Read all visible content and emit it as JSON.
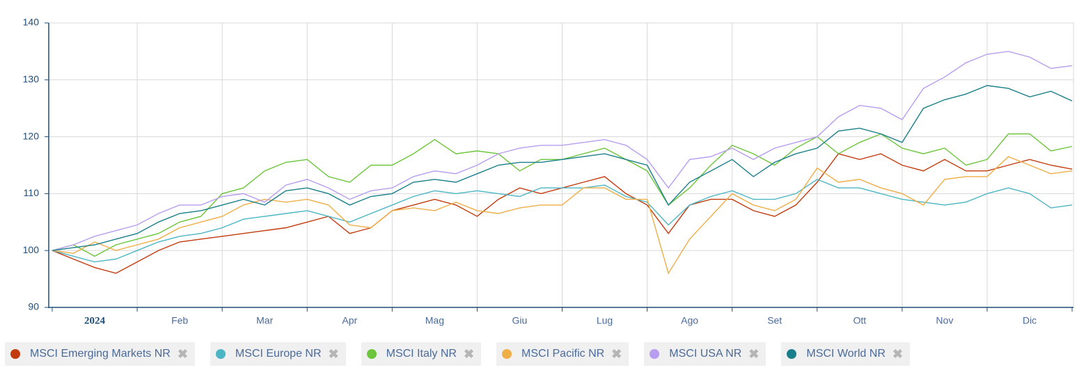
{
  "chart_data": {
    "type": "line",
    "categories": [
      "2024",
      null,
      null,
      null,
      "Feb",
      null,
      null,
      null,
      "Mar",
      null,
      null,
      null,
      "Apr",
      null,
      null,
      null,
      "Mag",
      null,
      null,
      null,
      "Giu",
      null,
      null,
      null,
      "Lug",
      null,
      null,
      null,
      "Ago",
      null,
      null,
      null,
      "Set",
      null,
      null,
      null,
      "Ott",
      null,
      null,
      null,
      "Nov",
      null,
      null,
      null,
      "Dic",
      null,
      null,
      null,
      null
    ],
    "ylim": [
      90,
      140
    ],
    "yticks": [
      90,
      100,
      110,
      120,
      130,
      140
    ],
    "grid": true,
    "series": [
      {
        "name": "MSCI Emerging Markets NR",
        "color": "#c23b0e",
        "values": [
          100,
          98.5,
          97,
          96,
          98,
          100,
          101.5,
          102,
          102.5,
          103,
          103.5,
          104,
          105,
          106,
          103,
          104,
          107,
          108,
          109,
          108,
          106,
          109,
          111,
          110,
          111,
          112,
          113,
          110,
          108,
          103,
          108,
          109,
          109,
          107,
          106,
          108,
          112,
          117,
          116,
          117,
          115,
          114,
          116,
          114,
          114,
          115,
          116,
          115,
          114.3
        ]
      },
      {
        "name": "MSCI Europe NR",
        "color": "#4cb5c4",
        "values": [
          100,
          99,
          98,
          98.5,
          100,
          101.5,
          102.5,
          103,
          104,
          105.5,
          106,
          106.5,
          107,
          106,
          105,
          106.5,
          108,
          109.5,
          110.5,
          110,
          110.5,
          110,
          109.5,
          111,
          111,
          111,
          111.5,
          109.5,
          108.5,
          104.5,
          108,
          109.5,
          110.5,
          109,
          109,
          110,
          112.5,
          111,
          111,
          110,
          109,
          108.5,
          108,
          108.5,
          110,
          111,
          110,
          107.5,
          108
        ]
      },
      {
        "name": "MSCI Italy NR",
        "color": "#6cc53a",
        "values": [
          100,
          101,
          99,
          101,
          102,
          103,
          105,
          106,
          110,
          111,
          114,
          115.5,
          116,
          113,
          112,
          115,
          115,
          117,
          119.5,
          117,
          117.5,
          117,
          114,
          116,
          116,
          117,
          118,
          116,
          114,
          108,
          111,
          115,
          118.5,
          117,
          115,
          118,
          120,
          117,
          119,
          120.5,
          118,
          117,
          118,
          115,
          116,
          120.5,
          120.5,
          117.5,
          118.3
        ]
      },
      {
        "name": "MSCI Pacific NR",
        "color": "#efae47",
        "values": [
          100,
          99.5,
          101.5,
          100,
          101,
          102,
          104,
          105,
          106,
          108,
          109,
          108.5,
          109,
          108,
          104.5,
          104,
          107,
          107.5,
          107,
          108.5,
          107,
          106.5,
          107.5,
          108,
          108,
          111,
          111,
          109,
          109,
          96,
          102,
          106,
          110,
          108,
          107,
          109,
          114.5,
          112,
          112.5,
          111,
          110,
          108,
          112.5,
          113,
          113,
          116.5,
          115,
          113.5,
          114
        ]
      },
      {
        "name": "MSCI USA NR",
        "color": "#b89cf0",
        "values": [
          100,
          101,
          102.5,
          103.5,
          104.5,
          106.5,
          108,
          108,
          109.5,
          110,
          108.5,
          111.5,
          112.5,
          111,
          109,
          110.5,
          111,
          113,
          114,
          113.5,
          115,
          117,
          118,
          118.5,
          118.5,
          119,
          119.5,
          118.5,
          116,
          111,
          116,
          116.5,
          118,
          116,
          118,
          119,
          120,
          123.5,
          125.5,
          125,
          123,
          128.5,
          130.5,
          133,
          134.5,
          135,
          134,
          132,
          132.5
        ]
      },
      {
        "name": "MSCI World NR",
        "color": "#1a7f8a",
        "values": [
          100,
          100.5,
          101,
          102,
          103,
          105,
          106.5,
          107,
          108,
          109,
          108,
          110.5,
          111,
          110,
          108,
          109.5,
          110,
          112,
          112.5,
          112,
          113.5,
          115,
          115.5,
          115.5,
          116,
          116.5,
          117,
          116,
          115,
          108,
          112,
          114,
          116,
          113,
          115.5,
          117,
          118,
          121,
          121.5,
          120.5,
          119,
          125,
          126.5,
          127.5,
          129,
          128.5,
          127,
          128,
          126.3
        ]
      }
    ]
  }
}
